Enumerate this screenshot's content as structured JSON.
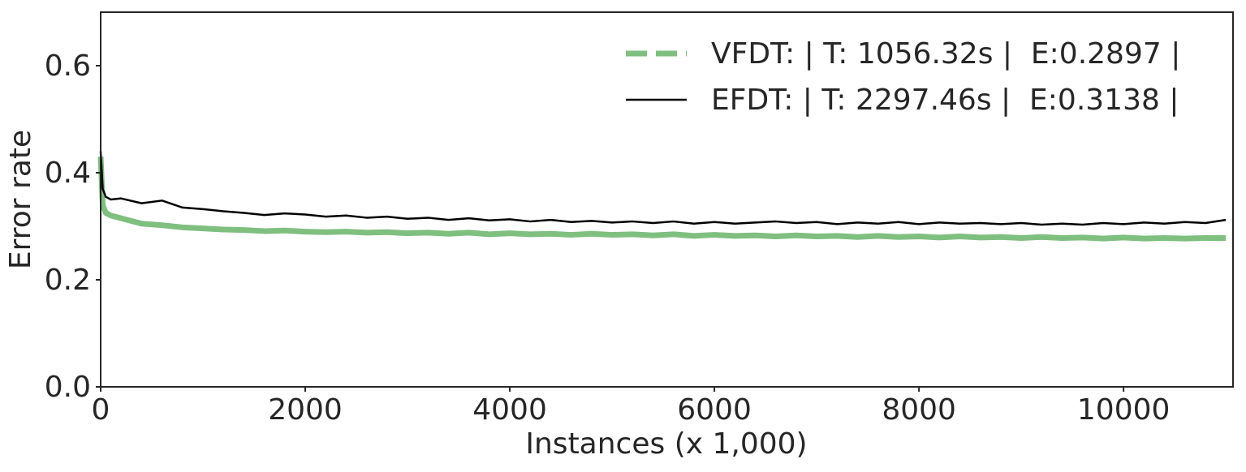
{
  "chart_data": {
    "type": "line",
    "xlabel": "Instances (x 1,000)",
    "ylabel": "Error rate",
    "x": [
      0,
      20,
      50,
      100,
      200,
      400,
      600,
      800,
      1000,
      1200,
      1400,
      1600,
      1800,
      2000,
      2200,
      2400,
      2600,
      2800,
      3000,
      3200,
      3400,
      3600,
      3800,
      4000,
      4200,
      4400,
      4600,
      4800,
      5000,
      5200,
      5400,
      5600,
      5800,
      6000,
      6200,
      6400,
      6600,
      6800,
      7000,
      7200,
      7400,
      7600,
      7800,
      8000,
      8200,
      8400,
      8600,
      8800,
      9000,
      9200,
      9400,
      9600,
      9800,
      10000,
      10200,
      10400,
      10600,
      10800,
      11000
    ],
    "series": [
      {
        "name": "VFDT: | T: 1056.32s |  E:0.2897 |",
        "color": "#7fbf7f",
        "values": [
          0.43,
          0.34,
          0.325,
          0.32,
          0.315,
          0.305,
          0.302,
          0.298,
          0.296,
          0.294,
          0.293,
          0.291,
          0.292,
          0.29,
          0.289,
          0.29,
          0.288,
          0.289,
          0.287,
          0.288,
          0.286,
          0.288,
          0.285,
          0.287,
          0.285,
          0.286,
          0.284,
          0.286,
          0.284,
          0.285,
          0.283,
          0.285,
          0.282,
          0.284,
          0.282,
          0.283,
          0.281,
          0.283,
          0.281,
          0.282,
          0.28,
          0.282,
          0.28,
          0.281,
          0.279,
          0.281,
          0.279,
          0.28,
          0.278,
          0.28,
          0.278,
          0.279,
          0.277,
          0.279,
          0.277,
          0.278,
          0.277,
          0.278,
          0.278
        ]
      },
      {
        "name": "EFDT: | T: 2297.46s |  E:0.3138 |",
        "color": "#000000",
        "values": [
          0.44,
          0.37,
          0.355,
          0.35,
          0.352,
          0.343,
          0.348,
          0.335,
          0.332,
          0.328,
          0.325,
          0.321,
          0.324,
          0.322,
          0.318,
          0.32,
          0.316,
          0.318,
          0.314,
          0.316,
          0.312,
          0.315,
          0.311,
          0.313,
          0.309,
          0.312,
          0.308,
          0.31,
          0.307,
          0.309,
          0.306,
          0.309,
          0.305,
          0.308,
          0.305,
          0.307,
          0.309,
          0.306,
          0.308,
          0.304,
          0.307,
          0.305,
          0.308,
          0.304,
          0.307,
          0.305,
          0.306,
          0.304,
          0.306,
          0.303,
          0.305,
          0.303,
          0.306,
          0.304,
          0.307,
          0.305,
          0.308,
          0.306,
          0.312
        ]
      }
    ],
    "xlim": [
      0,
      11070
    ],
    "xticks": [
      0,
      2000,
      4000,
      6000,
      8000,
      10000
    ],
    "ylim": [
      0,
      0.7
    ],
    "yticks": [
      {
        "value": 0,
        "label": "0.0"
      },
      0.2,
      0.4,
      0.6
    ],
    "legend": "upper right"
  }
}
